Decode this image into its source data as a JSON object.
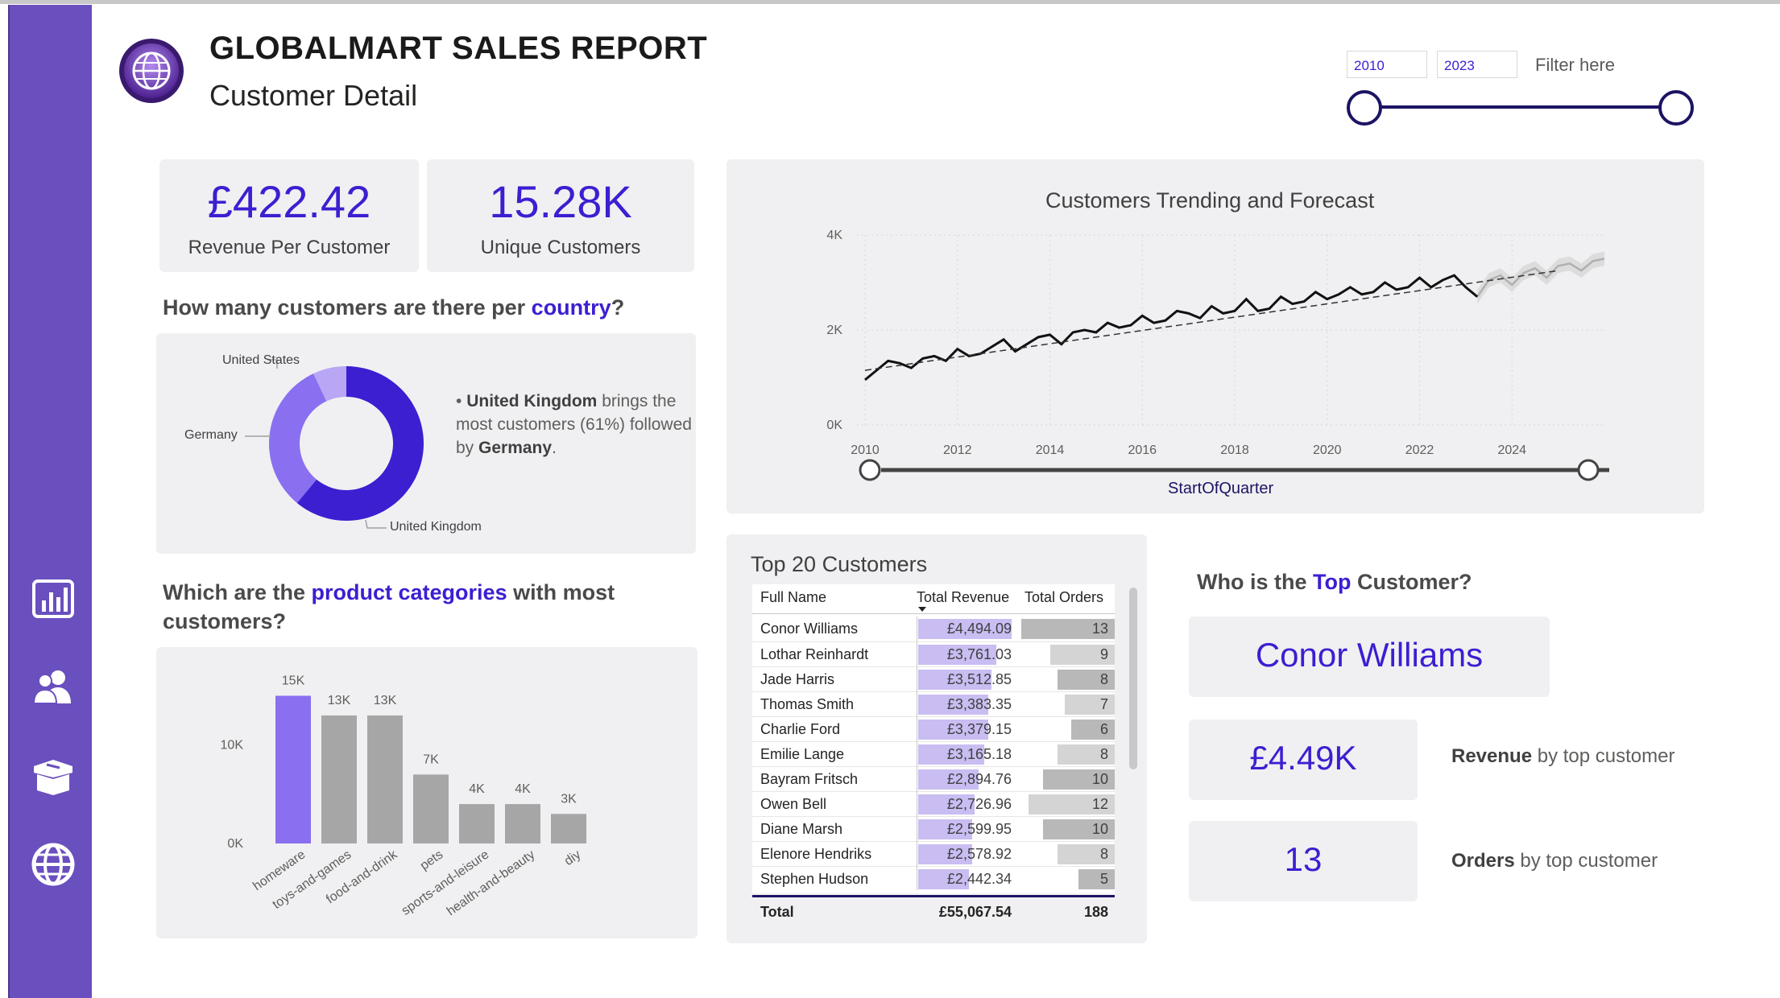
{
  "header": {
    "title": "GLOBALMART SALES REPORT",
    "subtitle": "Customer Detail",
    "logo_icon": "globe-logo-icon"
  },
  "filter": {
    "start_year": "2010",
    "end_year": "2023",
    "label": "Filter here"
  },
  "sidebar": {
    "items": [
      {
        "icon": "bar-chart-icon"
      },
      {
        "icon": "users-icon"
      },
      {
        "icon": "box-icon"
      },
      {
        "icon": "globe-icon"
      }
    ]
  },
  "kpis": {
    "revenue_per_customer": {
      "value": "£422.42",
      "label": "Revenue Per Customer"
    },
    "unique_customers": {
      "value": "15.28K",
      "label": "Unique Customers"
    }
  },
  "country_section": {
    "question_prefix": "How many customers are there per ",
    "question_highlight": "country",
    "question_suffix": "?",
    "note_bullet": "•",
    "note_country": "United Kingdom",
    "note_mid": " brings the most customers (61%) followed by ",
    "note_second": "Germany",
    "note_end": "."
  },
  "category_section": {
    "question_prefix": "Which are the ",
    "question_highlight": "product categories",
    "question_suffix": " with most customers?"
  },
  "trend_section": {
    "title": "Customers Trending and Forecast",
    "slider_label": "StartOfQuarter"
  },
  "table": {
    "title": "Top 20 Customers",
    "columns": [
      "Full Name",
      "Total Revenue",
      "Total Orders"
    ],
    "rows": [
      {
        "name": "Conor Williams",
        "revenue": "£4,494.09",
        "orders": "13"
      },
      {
        "name": "Lothar Reinhardt",
        "revenue": "£3,761.03",
        "orders": "9"
      },
      {
        "name": "Jade Harris",
        "revenue": "£3,512.85",
        "orders": "8"
      },
      {
        "name": "Thomas Smith",
        "revenue": "£3,383.35",
        "orders": "7"
      },
      {
        "name": "Charlie Ford",
        "revenue": "£3,379.15",
        "orders": "6"
      },
      {
        "name": "Emilie Lange",
        "revenue": "£3,165.18",
        "orders": "8"
      },
      {
        "name": "Bayram Fritsch",
        "revenue": "£2,894.76",
        "orders": "10"
      },
      {
        "name": "Owen Bell",
        "revenue": "£2,726.96",
        "orders": "12"
      },
      {
        "name": "Diane Marsh",
        "revenue": "£2,599.95",
        "orders": "10"
      },
      {
        "name": "Elenore Hendriks",
        "revenue": "£2,578.92",
        "orders": "8"
      },
      {
        "name": "Stephen Hudson",
        "revenue": "£2,442.34",
        "orders": "5"
      }
    ],
    "total_label": "Total",
    "total_revenue": "£55,067.54",
    "total_orders": "188"
  },
  "top_customer": {
    "question_prefix": "Who is the ",
    "question_highlight": "Top",
    "question_suffix": " Customer?",
    "name": "Conor Williams",
    "revenue_value": "£4.49K",
    "revenue_label_bold": "Revenue",
    "revenue_label_rest": " by top customer",
    "orders_value": "13",
    "orders_label_bold": "Orders",
    "orders_label_rest": " by top customer"
  },
  "colors": {
    "accent": "#3b1fd1",
    "sidebar": "#6a4fbf",
    "donut_uk": "#3b1fd1",
    "donut_germany": "#8a6ff0",
    "donut_us": "#b9a6f5",
    "bar_highlight": "#8a6ff0",
    "bar_default": "#a6a6a6"
  },
  "chart_data": [
    {
      "type": "pie",
      "title": "",
      "categories": [
        "United Kingdom",
        "Germany",
        "United States"
      ],
      "values": [
        61,
        32,
        7
      ],
      "donut": true
    },
    {
      "type": "bar",
      "categories": [
        "homeware",
        "toys-and-games",
        "food-and-drink",
        "pets",
        "sports-and-leisure",
        "health-and-beauty",
        "diy"
      ],
      "values": [
        15000,
        13000,
        13000,
        7000,
        4000,
        4000,
        3000
      ],
      "data_labels": [
        "15K",
        "13K",
        "13K",
        "7K",
        "4K",
        "4K",
        "3K"
      ],
      "yticks": [
        "0K",
        "10K"
      ],
      "ylim": [
        0,
        17000
      ],
      "highlight_index": 0
    },
    {
      "type": "line",
      "title": "Customers Trending and Forecast",
      "xlabel": "StartOfQuarter",
      "xticks": [
        "2010",
        "2012",
        "2014",
        "2016",
        "2018",
        "2020",
        "2022",
        "2024"
      ],
      "yticks": [
        "0K",
        "2K",
        "4K"
      ],
      "ylim": [
        0,
        4000
      ],
      "xlim": [
        2010,
        2026
      ],
      "series": [
        {
          "actual": true,
          "x": [
            2010.0,
            2010.25,
            2010.5,
            2010.75,
            2011.0,
            2011.25,
            2011.5,
            2011.75,
            2012.0,
            2012.25,
            2012.5,
            2012.75,
            2013.0,
            2013.25,
            2013.5,
            2013.75,
            2014.0,
            2014.25,
            2014.5,
            2014.75,
            2015.0,
            2015.25,
            2015.5,
            2015.75,
            2016.0,
            2016.25,
            2016.5,
            2016.75,
            2017.0,
            2017.25,
            2017.5,
            2017.75,
            2018.0,
            2018.25,
            2018.5,
            2018.75,
            2019.0,
            2019.25,
            2019.5,
            2019.75,
            2020.0,
            2020.25,
            2020.5,
            2020.75,
            2021.0,
            2021.25,
            2021.5,
            2021.75,
            2022.0,
            2022.25,
            2022.5,
            2022.75,
            2023.0,
            2023.25
          ],
          "values": [
            950,
            1150,
            1350,
            1300,
            1200,
            1400,
            1450,
            1350,
            1600,
            1450,
            1500,
            1650,
            1800,
            1550,
            1700,
            1850,
            1900,
            1700,
            1950,
            2000,
            1950,
            2150,
            2050,
            2100,
            2300,
            2150,
            2200,
            2400,
            2350,
            2250,
            2500,
            2350,
            2400,
            2650,
            2400,
            2450,
            2700,
            2550,
            2600,
            2800,
            2650,
            2750,
            2900,
            2750,
            2800,
            3000,
            2850,
            2900,
            3100,
            2900,
            3050,
            3150,
            2900,
            2700
          ]
        },
        {
          "trend": true,
          "x": [
            2010.0,
            2025.0
          ],
          "values": [
            1150,
            3250
          ]
        },
        {
          "forecast": true,
          "x": [
            2023.25,
            2023.5,
            2023.75,
            2024.0,
            2024.25,
            2024.5,
            2024.75,
            2025.0,
            2025.25,
            2025.5,
            2025.75,
            2026.0
          ],
          "values": [
            2700,
            3050,
            3150,
            2950,
            3200,
            3300,
            3100,
            3350,
            3400,
            3250,
            3450,
            3500
          ],
          "band": 150
        }
      ]
    }
  ]
}
